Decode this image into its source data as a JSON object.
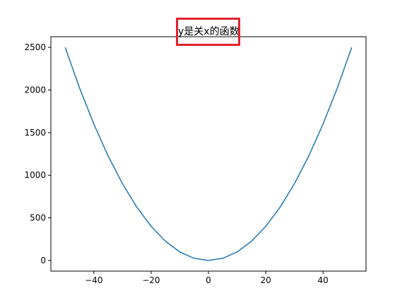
{
  "chart_data": {
    "type": "line",
    "title": "y是关x的函数",
    "xlabel": "",
    "ylabel": "",
    "xlim": [
      -55,
      55
    ],
    "ylim": [
      -125,
      2625
    ],
    "xticks": [
      -40,
      -20,
      0,
      20,
      40
    ],
    "xtick_labels": [
      "−40",
      "−20",
      "0",
      "20",
      "40"
    ],
    "yticks": [
      0,
      500,
      1000,
      1500,
      2000,
      2500
    ],
    "ytick_labels": [
      "0",
      "500",
      "1000",
      "1500",
      "2000",
      "2500"
    ],
    "grid": false,
    "legend": "none",
    "series": [
      {
        "color": "#1f77b4",
        "x": [
          -50,
          -45,
          -40,
          -35,
          -30,
          -25,
          -20,
          -15,
          -10,
          -5,
          0,
          5,
          10,
          15,
          20,
          25,
          30,
          35,
          40,
          45,
          50
        ],
        "y": [
          2500,
          2025,
          1600,
          1225,
          900,
          625,
          400,
          225,
          100,
          25,
          0,
          25,
          100,
          225,
          400,
          625,
          900,
          1225,
          1600,
          2025,
          2500
        ]
      }
    ]
  },
  "annotations": {
    "title_box_color": "#e3232c"
  }
}
